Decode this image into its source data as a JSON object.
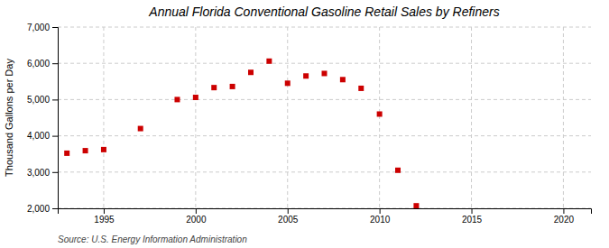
{
  "chart_data": {
    "type": "scatter",
    "title": "Annual Florida Conventional Gasoline Retail Sales by Refiners",
    "ylabel": "Thousand Gallons per Day",
    "annotations": [
      "Source: U.S. Energy Information Administration"
    ],
    "x": [
      1993,
      1994,
      1995,
      1997,
      1999,
      2000,
      2001,
      2002,
      2003,
      2004,
      2005,
      2006,
      2007,
      2008,
      2009,
      2011,
      2012,
      2010
    ],
    "values": [
      3520,
      3590,
      3620,
      4200,
      5000,
      5060,
      5330,
      5360,
      5750,
      6060,
      5450,
      5650,
      5720,
      5550,
      5310,
      3050,
      2070,
      4600
    ],
    "color": "#cc0000",
    "marker": "square",
    "xlim": [
      1992.5,
      2021.5
    ],
    "ylim": [
      2000,
      7000
    ],
    "xticks": [
      1995,
      2000,
      2005,
      2010,
      2015,
      2020
    ],
    "yticks": [
      {
        "value": 2000,
        "label": "2,000"
      },
      {
        "value": 3000,
        "label": "3,000"
      },
      {
        "value": 4000,
        "label": "4,000"
      },
      {
        "value": 5000,
        "label": "5,000"
      },
      {
        "value": 6000,
        "label": "6,000"
      },
      {
        "value": 7000,
        "label": "7,000"
      }
    ],
    "grid": true
  }
}
